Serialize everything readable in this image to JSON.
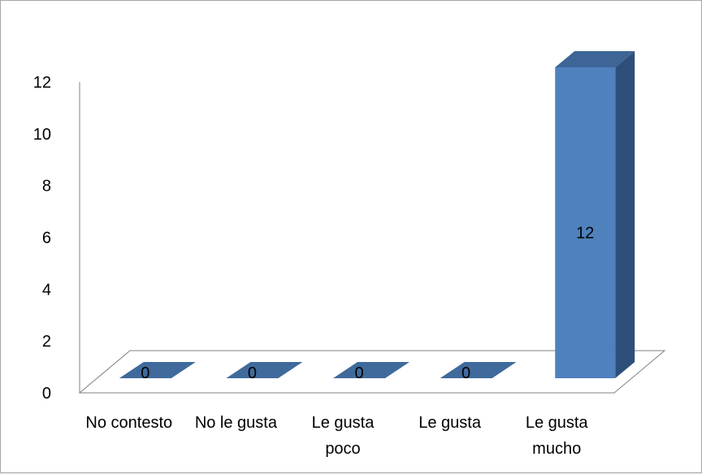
{
  "chart_data": {
    "type": "bar",
    "style": "3d-column",
    "categories": [
      [
        "No contesto"
      ],
      [
        "No le gusta"
      ],
      [
        "Le gusta",
        "poco"
      ],
      [
        "Le gusta"
      ],
      [
        "Le gusta",
        "mucho"
      ]
    ],
    "values": [
      0,
      0,
      0,
      0,
      12
    ],
    "data_labels": [
      "0",
      "0",
      "0",
      "0",
      "12"
    ],
    "y_ticks": [
      "0",
      "2",
      "4",
      "6",
      "8",
      "10",
      "12"
    ],
    "ylim": [
      0,
      12
    ],
    "title": "",
    "xlabel": "",
    "ylabel": "",
    "legend": "none",
    "grid": false,
    "colors": {
      "bar_front": "#4f81bd",
      "bar_side": "#2e4f7a",
      "bar_top": "#3d6596",
      "zero_bar": "#3f6a9b",
      "axis": "#808080",
      "frame": "#a6a6a6"
    }
  }
}
